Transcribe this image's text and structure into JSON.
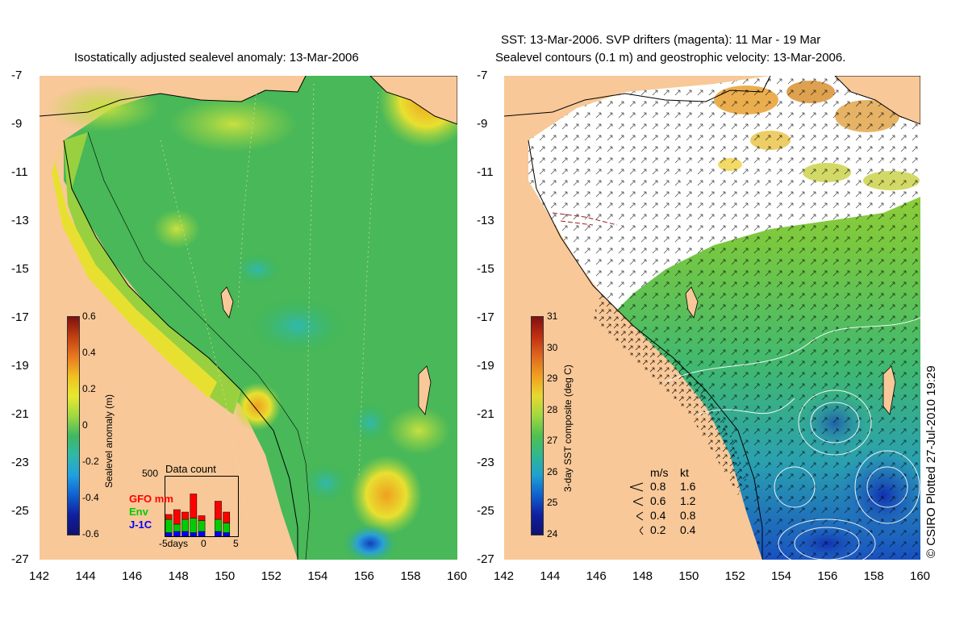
{
  "left_panel": {
    "title": "Isostatically adjusted sealevel anomaly: 13-Mar-2006",
    "colorbar": {
      "label": "Sealevel anomaly (m)",
      "ticks": [
        "0.6",
        "0.4",
        "0.2",
        "0",
        "-0.2",
        "-0.4",
        "-0.6"
      ]
    },
    "data_count": {
      "title": "Data count",
      "y_max": "500",
      "x_label": "-5days",
      "x_ticks": [
        "0",
        "5"
      ],
      "series": [
        {
          "name": "GFO mm",
          "color": "#ff0000",
          "values": [
            40,
            120,
            60,
            200,
            40,
            0,
            150,
            90,
            0
          ]
        },
        {
          "name": "Env",
          "color": "#00cc00",
          "values": [
            110,
            60,
            100,
            120,
            90,
            0,
            100,
            80,
            0
          ]
        },
        {
          "name": "J-1C",
          "color": "#0000ff",
          "values": [
            30,
            40,
            40,
            30,
            40,
            0,
            40,
            30,
            0
          ]
        }
      ]
    }
  },
  "right_panel": {
    "title_line1": "SST: 13-Mar-2006. SVP drifters (magenta): 11 Mar - 19 Mar",
    "title_line2": "Sealevel contours (0.1 m) and geostrophic velocity: 13-Mar-2006.",
    "colorbar": {
      "label": "3-day SST composite (deg C)",
      "ticks": [
        "31",
        "30",
        "29",
        "28",
        "27",
        "26",
        "25",
        "24"
      ]
    },
    "velocity_legend": {
      "header_ms": "m/s",
      "header_kt": "kt",
      "rows": [
        {
          "ms": "0.8",
          "kt": "1.6"
        },
        {
          "ms": "0.6",
          "kt": "1.2"
        },
        {
          "ms": "0.4",
          "kt": "0.8"
        },
        {
          "ms": "0.2",
          "kt": "0.4"
        }
      ]
    }
  },
  "axes": {
    "lat_ticks": [
      "-7",
      "-9",
      "-11",
      "-13",
      "-15",
      "-17",
      "-19",
      "-21",
      "-23",
      "-25",
      "-27"
    ],
    "lon_ticks": [
      "142",
      "144",
      "146",
      "148",
      "150",
      "152",
      "154",
      "156",
      "158",
      "160"
    ]
  },
  "copyright": "© CSIRO Plotted 27-Jul-2010 19:29",
  "colors": {
    "land": "#f8c898",
    "sea_green": "#3cb860",
    "cloud": "#ffffff",
    "coast": "#000000"
  }
}
